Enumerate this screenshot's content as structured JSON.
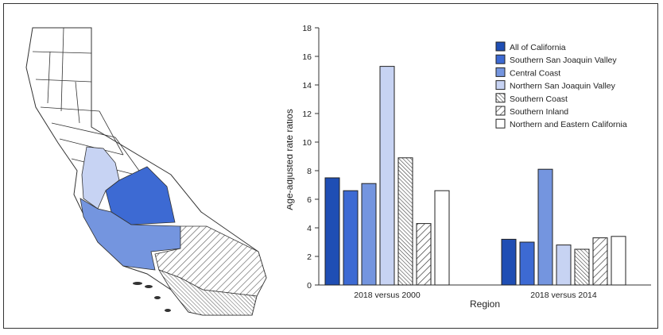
{
  "chart_data": {
    "type": "bar",
    "title": "",
    "xlabel": "Region",
    "ylabel": "Age-adjusted rate ratios",
    "ylim": [
      0,
      18
    ],
    "yticks": [
      0,
      2,
      4,
      6,
      8,
      10,
      12,
      14,
      16,
      18
    ],
    "grid": false,
    "legend_position": "top-right",
    "categories": [
      "2018 versus 2000",
      "2018 versus 2014"
    ],
    "series": [
      {
        "name": "All of California",
        "values": [
          7.5,
          3.2
        ],
        "fill": "#1f4eb4",
        "pattern": "none"
      },
      {
        "name": "Southern San Joaquin Valley",
        "values": [
          6.6,
          3.0
        ],
        "fill": "#3d6ad3",
        "pattern": "none"
      },
      {
        "name": "Central Coast",
        "values": [
          7.1,
          8.1
        ],
        "fill": "#7495df",
        "pattern": "none"
      },
      {
        "name": "Northern San Joaquin Valley",
        "values": [
          15.3,
          2.8
        ],
        "fill": "#c7d3f3",
        "pattern": "none"
      },
      {
        "name": "Southern Coast",
        "values": [
          8.9,
          2.5
        ],
        "fill": "#ffffff",
        "pattern": "dense-hatch"
      },
      {
        "name": "Southern Inland",
        "values": [
          4.3,
          3.3
        ],
        "fill": "#ffffff",
        "pattern": "hatch"
      },
      {
        "name": "Northern and Eastern California",
        "values": [
          6.6,
          3.4
        ],
        "fill": "#ffffff",
        "pattern": "none"
      }
    ]
  }
}
